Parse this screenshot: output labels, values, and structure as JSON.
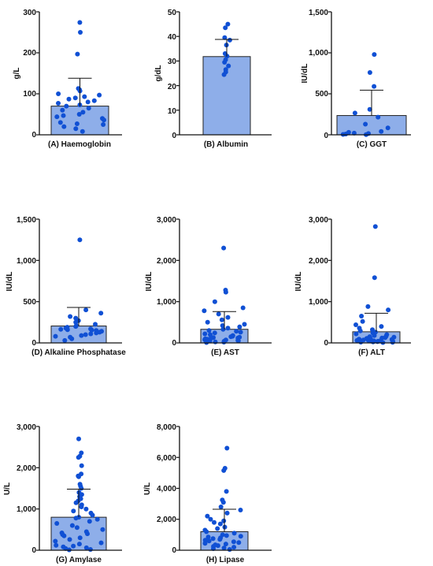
{
  "style": {
    "bar_fill": "#8eaee9",
    "bar_stroke": "#222222",
    "point_color": "#1050d4",
    "axis_color": "#111111"
  },
  "chart_data": [
    {
      "type": "bar",
      "title": "",
      "xlabel": "(A) Haemoglobin",
      "ylabel": "g/L",
      "ylim": [
        0,
        300
      ],
      "yticks": [
        0,
        100,
        200,
        300
      ],
      "ytick_labels": [
        "0",
        "100",
        "200",
        "300"
      ],
      "mean": 70,
      "sd": 68,
      "values": [
        274,
        250,
        197,
        113,
        110,
        107,
        100,
        97,
        93,
        90,
        87,
        83,
        80,
        77,
        73,
        70,
        65,
        60,
        55,
        50,
        47,
        44,
        40,
        36,
        30,
        27,
        25,
        20,
        15,
        8
      ]
    },
    {
      "type": "bar",
      "title": "",
      "xlabel": "(B) Albumin",
      "ylabel": "g/dL",
      "ylim": [
        0,
        50
      ],
      "yticks": [
        0,
        10,
        20,
        30,
        40,
        50
      ],
      "ytick_labels": [
        "0",
        "10",
        "20",
        "30",
        "40",
        "50"
      ],
      "mean": 31.8,
      "sd": 7,
      "values": [
        45,
        43.5,
        39.5,
        38.5,
        36.5,
        33,
        32,
        30.5,
        29.5,
        28,
        26.5,
        25.5,
        24.5
      ]
    },
    {
      "type": "bar",
      "title": "",
      "xlabel": "(C) GGT",
      "ylabel": "IU/dL",
      "ylim": [
        0,
        1500
      ],
      "yticks": [
        0,
        500,
        1000,
        1500
      ],
      "ytick_labels": [
        "0",
        "500",
        "1,000",
        "1,500"
      ],
      "mean": 235,
      "sd": 310,
      "values": [
        980,
        760,
        590,
        310,
        265,
        215,
        130,
        85,
        40,
        30,
        20,
        15,
        10,
        5,
        3
      ]
    },
    {
      "type": "bar",
      "title": "",
      "xlabel": "(D) Alkaline Phosphatase",
      "ylabel": "IU/dL",
      "ylim": [
        0,
        1500
      ],
      "yticks": [
        0,
        500,
        1000,
        1500
      ],
      "ytick_labels": [
        "0",
        "500",
        "1,000",
        "1,500"
      ],
      "mean": 205,
      "sd": 225,
      "values": [
        1250,
        400,
        360,
        320,
        300,
        270,
        250,
        225,
        210,
        200,
        190,
        180,
        170,
        165,
        160,
        155,
        150,
        140,
        130,
        120,
        110,
        100,
        90,
        80,
        70,
        50,
        30
      ]
    },
    {
      "type": "bar",
      "title": "",
      "xlabel": "(E) AST",
      "ylabel": "IU/dL",
      "ylim": [
        0,
        3000
      ],
      "yticks": [
        0,
        1000,
        2000,
        3000
      ],
      "ytick_labels": [
        "0",
        "1,000",
        "2,000",
        "3,000"
      ],
      "mean": 330,
      "sd": 430,
      "values": [
        2300,
        1280,
        1230,
        1000,
        850,
        780,
        700,
        620,
        560,
        500,
        450,
        420,
        390,
        360,
        330,
        300,
        280,
        260,
        240,
        220,
        200,
        180,
        160,
        150,
        140,
        130,
        120,
        110,
        100,
        90,
        80,
        70,
        60,
        50,
        45,
        40,
        30,
        25,
        20,
        10
      ]
    },
    {
      "type": "bar",
      "title": "",
      "xlabel": "(F) ALT",
      "ylabel": "IU/dL",
      "ylim": [
        0,
        3000
      ],
      "yticks": [
        0,
        1000,
        2000,
        3000
      ],
      "ytick_labels": [
        "0",
        "1,000",
        "2,000",
        "3,000"
      ],
      "mean": 270,
      "sd": 450,
      "values": [
        2820,
        1580,
        880,
        800,
        650,
        520,
        440,
        400,
        360,
        320,
        290,
        260,
        240,
        220,
        200,
        180,
        160,
        150,
        140,
        130,
        120,
        110,
        100,
        90,
        85,
        80,
        75,
        70,
        65,
        60,
        55,
        50,
        45,
        40,
        35,
        30,
        25,
        20,
        15,
        10
      ]
    },
    {
      "type": "bar",
      "title": "",
      "xlabel": "(G) Amylase",
      "ylabel": "U/L",
      "ylim": [
        0,
        3000
      ],
      "yticks": [
        0,
        1000,
        2000,
        3000
      ],
      "ytick_labels": [
        "0",
        "1,000",
        "2,000",
        "3,000"
      ],
      "mean": 800,
      "sd": 680,
      "values": [
        2700,
        2360,
        2280,
        2250,
        2050,
        1850,
        1800,
        1780,
        1600,
        1550,
        1500,
        1400,
        1350,
        1300,
        1250,
        1200,
        1150,
        1100,
        1050,
        1000,
        950,
        900,
        850,
        800,
        780,
        750,
        700,
        650,
        600,
        550,
        500,
        450,
        420,
        400,
        380,
        350,
        300,
        260,
        220,
        180,
        150,
        120,
        100,
        80,
        60,
        40,
        20,
        10
      ]
    },
    {
      "type": "bar",
      "title": "",
      "xlabel": "(H) Lipase",
      "ylabel": "U/L",
      "ylim": [
        0,
        8000
      ],
      "yticks": [
        0,
        2000,
        4000,
        6000,
        8000
      ],
      "ytick_labels": [
        "0",
        "2,000",
        "4,000",
        "6,000",
        "8,000"
      ],
      "mean": 1200,
      "sd": 1450,
      "values": [
        6600,
        5300,
        5150,
        3800,
        3250,
        3100,
        2800,
        2600,
        2400,
        2200,
        2000,
        1900,
        1800,
        1700,
        1500,
        1400,
        1300,
        1200,
        1100,
        1000,
        950,
        900,
        850,
        800,
        750,
        700,
        650,
        600,
        550,
        500,
        450,
        400,
        350,
        300,
        250,
        200,
        150,
        100,
        50
      ]
    }
  ]
}
